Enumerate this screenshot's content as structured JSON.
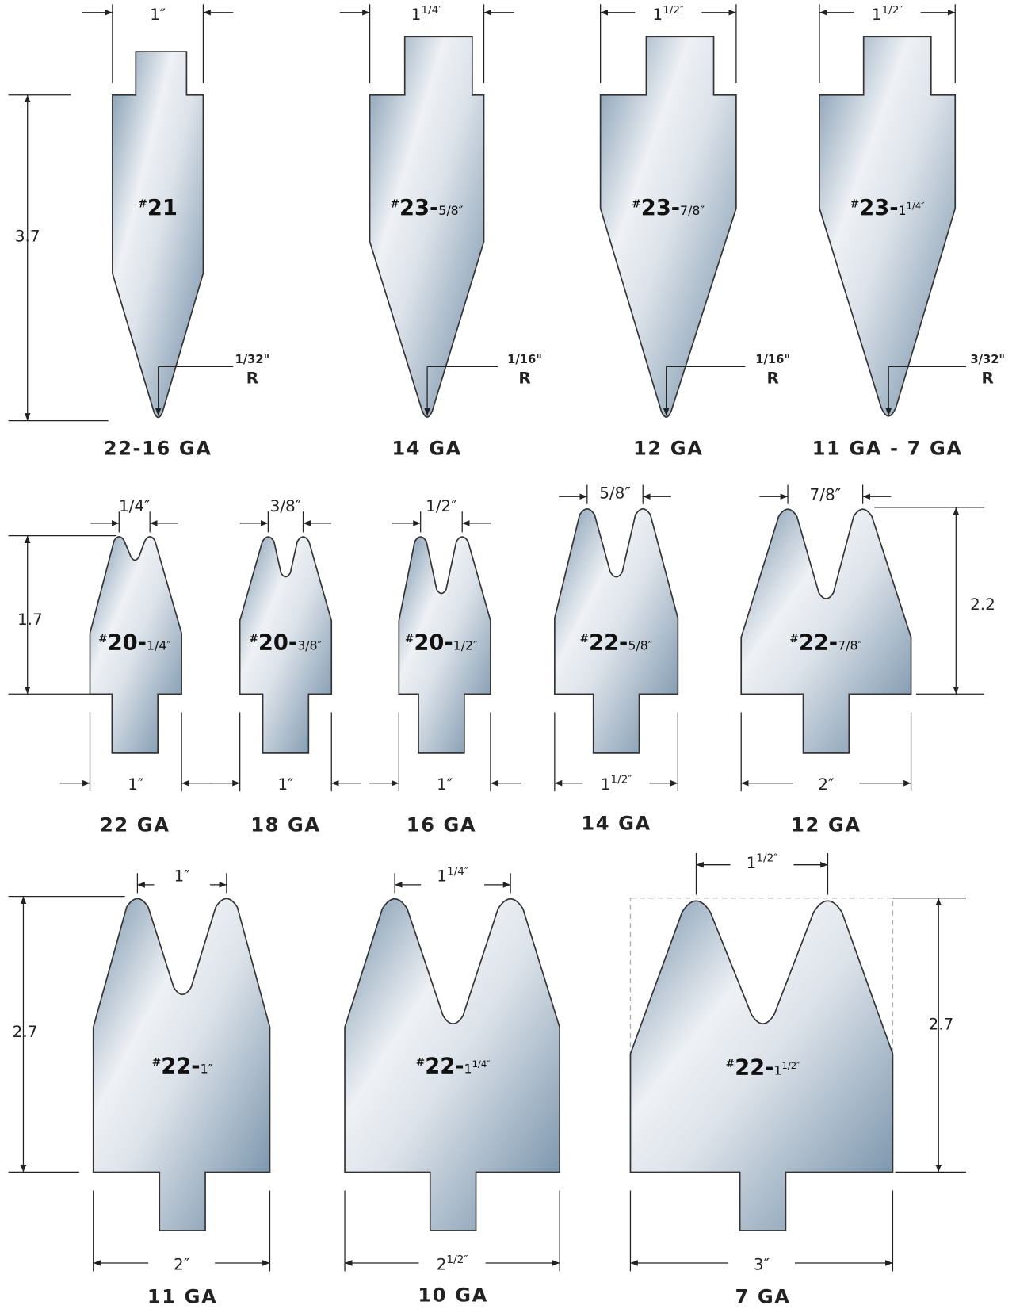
{
  "punches": [
    {
      "name": {
        "hash": "#",
        "code": "21"
      },
      "width": {
        "main": "1″"
      },
      "height": "3.7",
      "radius": "1/32\"",
      "radius_symbol": "R",
      "gauge": "22-16 GA"
    },
    {
      "name": {
        "hash": "#",
        "code": "23-",
        "size": "5/8″"
      },
      "width": {
        "main": "1",
        "sup": "1/4″"
      },
      "radius": "1/16\"",
      "radius_symbol": "R",
      "gauge": "14 GA"
    },
    {
      "name": {
        "hash": "#",
        "code": "23-",
        "size": "7/8″"
      },
      "width": {
        "main": "1",
        "sup": "1/2″"
      },
      "radius": "1/16\"",
      "radius_symbol": "R",
      "gauge": "12 GA"
    },
    {
      "name": {
        "hash": "#",
        "code": "23-",
        "size": "1",
        "size_sup": "1/4″"
      },
      "width": {
        "main": "1",
        "sup": "1/2″"
      },
      "radius": "3/32\"",
      "radius_symbol": "R",
      "gauge": "11 GA - 7 GA"
    }
  ],
  "dies": [
    {
      "name": {
        "hash": "#",
        "code": "20-",
        "size": "1/4″"
      },
      "opening": {
        "main": "1/4″"
      },
      "width": {
        "main": "1″"
      },
      "height": "1.7",
      "gauge": "22 GA"
    },
    {
      "name": {
        "hash": "#",
        "code": "20-",
        "size": "3/8″"
      },
      "opening": {
        "main": "3/8″"
      },
      "width": {
        "main": "1″"
      },
      "gauge": "18 GA"
    },
    {
      "name": {
        "hash": "#",
        "code": "20-",
        "size": "1/2″"
      },
      "opening": {
        "main": "1/2″"
      },
      "width": {
        "main": "1″"
      },
      "gauge": "16  GA"
    },
    {
      "name": {
        "hash": "#",
        "code": "22-",
        "size": "5/8″"
      },
      "opening": {
        "main": "5/8″"
      },
      "width": {
        "main": "1",
        "sup": "1/2″"
      },
      "gauge": "14  GA"
    },
    {
      "name": {
        "hash": "#",
        "code": "22-",
        "size": "7/8″"
      },
      "opening": {
        "main": "7/8″"
      },
      "width": {
        "main": "2″"
      },
      "height": "2.2",
      "gauge": "12 GA"
    },
    {
      "name": {
        "hash": "#",
        "code": "22-",
        "size": "1″"
      },
      "opening": {
        "main": "1″"
      },
      "width": {
        "main": "2″"
      },
      "height": "2.7",
      "gauge": "11 GA"
    },
    {
      "name": {
        "hash": "#",
        "code": "22-",
        "size": "1",
        "size_sup": "1/4″"
      },
      "opening": {
        "main": "1",
        "sup": "1/4″"
      },
      "width": {
        "main": "2",
        "sup": "1/2″"
      },
      "gauge": "10 GA"
    },
    {
      "name": {
        "hash": "#",
        "code": "22-",
        "size": "1",
        "size_sup": "1/2″"
      },
      "opening": {
        "main": "1",
        "sup": "1/2″"
      },
      "width": {
        "main": "3″"
      },
      "height": "2.7",
      "gauge": "7 GA"
    }
  ]
}
